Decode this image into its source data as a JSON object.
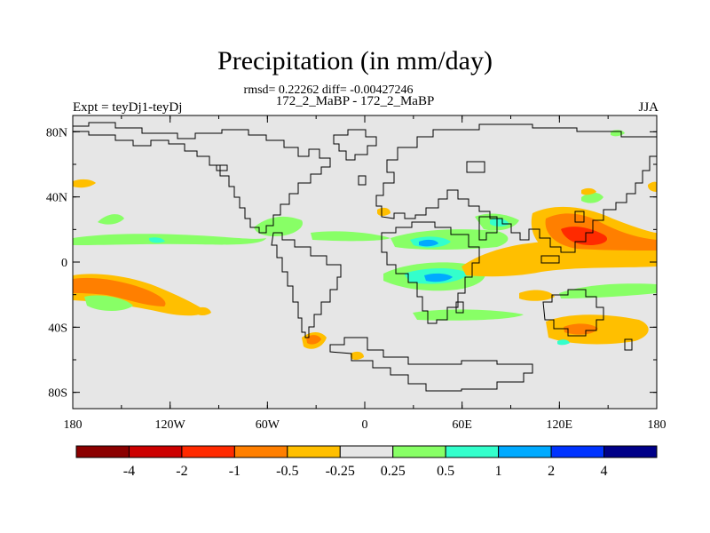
{
  "figure": {
    "title": "Precipitation (in mm/day)",
    "stats_line": "rmsd= 0.22262 diff= -0.00427246",
    "case_line": "172_2_MaBP - 172_2_MaBP",
    "experiment_label": "Expt = teyDj1-teyDj",
    "season_label": "JJA"
  },
  "map_data": {
    "projection": "cylindrical-equidistant",
    "lon_range": [
      -180,
      180
    ],
    "lat_range": [
      -90,
      90
    ],
    "x_tick_labels": [
      "180",
      "120W",
      "60W",
      "0",
      "60E",
      "120E",
      "180"
    ],
    "y_tick_labels": [
      "80N",
      "40N",
      "0",
      "40S",
      "80S"
    ],
    "colorbar": {
      "levels": [
        "-4",
        "-2",
        "-1",
        "-0.5",
        "-0.25",
        "0.25",
        "0.5",
        "1",
        "2",
        "4"
      ],
      "colors": [
        "#8b0000",
        "#cc0000",
        "#ff2a00",
        "#ff7f00",
        "#ffbf00",
        "#e6e6e6",
        "#88ff66",
        "#33ffcc",
        "#00aaff",
        "#0033ff",
        "#000088"
      ]
    },
    "background_color": "#e6e6e6",
    "coast_color": "#000000"
  }
}
